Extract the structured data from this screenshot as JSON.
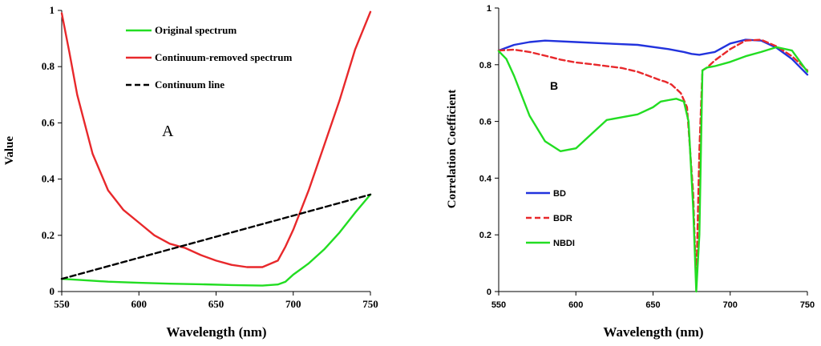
{
  "chart_data": [
    {
      "type": "line",
      "panel_label": "A",
      "title": "",
      "xlabel": "Wavelength (nm)",
      "ylabel": "Value",
      "xlim": [
        550,
        750
      ],
      "ylim": [
        0,
        1
      ],
      "xticks": [
        550,
        600,
        650,
        700,
        750
      ],
      "yticks": [
        0,
        0.2,
        0.4,
        0.6,
        0.8,
        1
      ],
      "ytick_labels": [
        "0",
        "0.2",
        "0.4",
        "0.6",
        "0.8",
        "1"
      ],
      "grid": false,
      "legend_position": "top-center",
      "series": [
        {
          "name": "Original spectrum",
          "color": "#22dd22",
          "dash": "solid",
          "x": [
            550,
            560,
            580,
            600,
            620,
            640,
            660,
            680,
            690,
            695,
            700,
            710,
            720,
            730,
            740,
            750
          ],
          "y": [
            0.045,
            0.042,
            0.035,
            0.031,
            0.028,
            0.026,
            0.023,
            0.021,
            0.025,
            0.035,
            0.06,
            0.1,
            0.15,
            0.21,
            0.28,
            0.345
          ]
        },
        {
          "name": "Continuum-removed spectrum",
          "color": "#e8282b",
          "dash": "solid",
          "x": [
            550,
            555,
            560,
            570,
            580,
            590,
            600,
            610,
            620,
            630,
            640,
            650,
            660,
            670,
            680,
            690,
            695,
            700,
            710,
            720,
            730,
            740,
            750
          ],
          "y": [
            0.99,
            0.85,
            0.7,
            0.49,
            0.36,
            0.29,
            0.245,
            0.2,
            0.17,
            0.155,
            0.13,
            0.11,
            0.095,
            0.087,
            0.087,
            0.11,
            0.16,
            0.22,
            0.36,
            0.52,
            0.68,
            0.86,
            0.995
          ]
        },
        {
          "name": "Continuum line",
          "color": "#000000",
          "dash": "dashed",
          "x": [
            550,
            750
          ],
          "y": [
            0.045,
            0.345
          ]
        }
      ]
    },
    {
      "type": "line",
      "panel_label": "B",
      "title": "",
      "xlabel": "Wavelength (nm)",
      "ylabel": "Correlation Coefficient",
      "xlim": [
        550,
        750
      ],
      "ylim": [
        0,
        1
      ],
      "xticks": [
        550,
        600,
        650,
        700,
        750
      ],
      "yticks": [
        0,
        0.2,
        0.4,
        0.6,
        0.8,
        1
      ],
      "ytick_labels": [
        "0",
        "0.2",
        "0.4",
        "0.6",
        "0.8",
        "1"
      ],
      "grid": false,
      "legend_position": "bottom-left",
      "series": [
        {
          "name": "BD",
          "color": "#2233dd",
          "dash": "solid",
          "x": [
            550,
            560,
            570,
            580,
            600,
            620,
            640,
            660,
            670,
            675,
            680,
            690,
            700,
            710,
            720,
            730,
            740,
            750
          ],
          "y": [
            0.85,
            0.87,
            0.88,
            0.885,
            0.88,
            0.875,
            0.87,
            0.855,
            0.845,
            0.838,
            0.835,
            0.845,
            0.875,
            0.888,
            0.885,
            0.86,
            0.82,
            0.765
          ]
        },
        {
          "name": "BDR",
          "color": "#e8282b",
          "dash": "dashed",
          "x": [
            550,
            560,
            570,
            580,
            590,
            600,
            610,
            620,
            630,
            640,
            650,
            655,
            658,
            662,
            668,
            672,
            676,
            678,
            680,
            682,
            685,
            690,
            700,
            710,
            720,
            730,
            740,
            750
          ],
          "y": [
            0.85,
            0.853,
            0.845,
            0.832,
            0.818,
            0.808,
            0.802,
            0.795,
            0.788,
            0.775,
            0.755,
            0.745,
            0.74,
            0.73,
            0.7,
            0.65,
            0.35,
            0.02,
            0.5,
            0.78,
            0.79,
            0.815,
            0.855,
            0.885,
            0.888,
            0.865,
            0.83,
            0.78
          ]
        },
        {
          "name": "NBDI",
          "color": "#22dd22",
          "dash": "solid",
          "x": [
            550,
            555,
            560,
            570,
            580,
            590,
            600,
            610,
            620,
            630,
            640,
            650,
            655,
            660,
            665,
            670,
            673,
            676,
            678,
            680,
            682,
            685,
            690,
            700,
            710,
            720,
            730,
            740,
            750
          ],
          "y": [
            0.848,
            0.82,
            0.76,
            0.62,
            0.53,
            0.495,
            0.505,
            0.555,
            0.605,
            0.615,
            0.625,
            0.65,
            0.67,
            0.675,
            0.68,
            0.67,
            0.6,
            0.3,
            0.0,
            0.2,
            0.78,
            0.79,
            0.795,
            0.81,
            0.83,
            0.845,
            0.862,
            0.85,
            0.775
          ]
        }
      ]
    }
  ]
}
